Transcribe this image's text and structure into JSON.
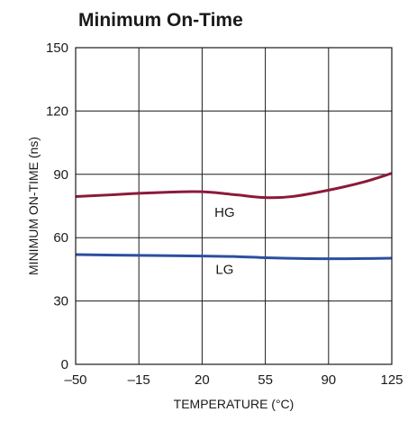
{
  "chart_data": {
    "type": "line",
    "title": "Minimum On-Time",
    "xlabel": "TEMPERATURE (°C)",
    "ylabel": "MINIMUM ON-TIME (ns)",
    "xlim": [
      -50,
      125
    ],
    "ylim": [
      0,
      150
    ],
    "xticks": [
      -50,
      -15,
      20,
      55,
      90,
      125
    ],
    "xtick_labels": [
      "–50",
      "–15",
      "20",
      "55",
      "90",
      "125"
    ],
    "yticks": [
      0,
      30,
      60,
      90,
      120,
      150
    ],
    "ytick_labels": [
      "0",
      "30",
      "60",
      "90",
      "120",
      "150"
    ],
    "grid": true,
    "series": [
      {
        "name": "HG",
        "color": "#8b1a3a",
        "x": [
          -50,
          -30,
          -15,
          0,
          15,
          25,
          40,
          55,
          70,
          90,
          110,
          125
        ],
        "y": [
          79.5,
          80.3,
          81,
          81.5,
          81.8,
          81.5,
          80.2,
          79,
          79.5,
          82.5,
          86.5,
          90.5
        ]
      },
      {
        "name": "LG",
        "color": "#2b4fa0",
        "x": [
          -50,
          -15,
          20,
          40,
          55,
          75,
          90,
          110,
          125
        ],
        "y": [
          52,
          51.6,
          51.3,
          51,
          50.5,
          50.1,
          50,
          50.1,
          50.3
        ]
      }
    ],
    "series_label_positions": [
      {
        "name": "HG",
        "x": 20,
        "y": 72
      },
      {
        "name": "LG",
        "x": 20,
        "y": 45
      }
    ]
  }
}
